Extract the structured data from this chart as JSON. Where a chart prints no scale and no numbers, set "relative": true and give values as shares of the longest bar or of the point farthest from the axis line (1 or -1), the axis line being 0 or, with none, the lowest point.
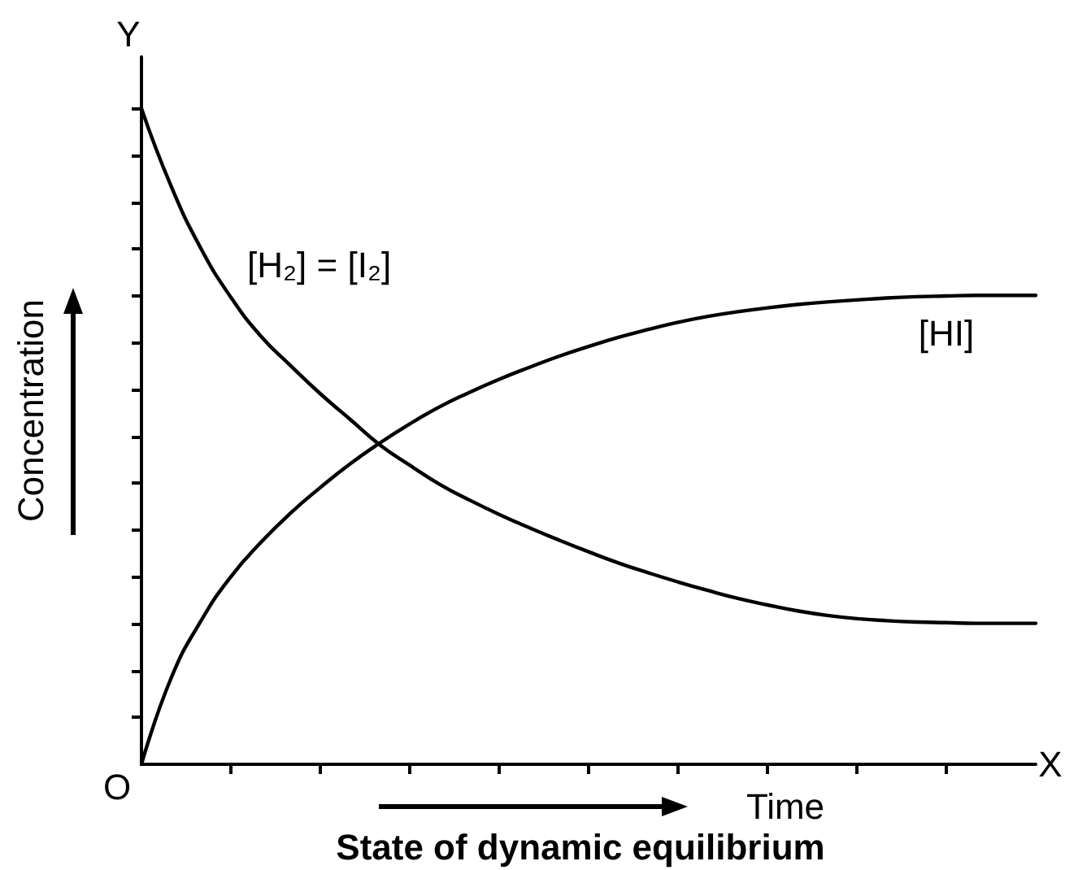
{
  "chart_data": {
    "type": "line",
    "title": "State of dynamic equilibrium",
    "xlabel": "Time",
    "ylabel": "Concentration",
    "annotations": [
      "Y",
      "X",
      "O"
    ],
    "categories": [
      null,
      null,
      null,
      null,
      null,
      null,
      null,
      null,
      null,
      null,
      null,
      null,
      null,
      null,
      null,
      null,
      null,
      null,
      null,
      null,
      null,
      null,
      null,
      null,
      null,
      null,
      null,
      null,
      null,
      null,
      null
    ],
    "series": [
      {
        "name": "[H₂] = [I₂]",
        "color": "#000000",
        "values": [
          1,
          0.881,
          0.786,
          0.712,
          0.653,
          0.608,
          0.565,
          0.526,
          0.487,
          0.456,
          0.427,
          0.403,
          0.381,
          0.361,
          0.342,
          0.324,
          0.307,
          0.292,
          0.278,
          0.265,
          0.253,
          0.243,
          0.234,
          0.227,
          0.222,
          0.219,
          0.217,
          0.216,
          0.215,
          0.215,
          0.215
        ]
      },
      {
        "name": "[HI]",
        "color": "#000000",
        "values": [
          0,
          0.132,
          0.219,
          0.286,
          0.338,
          0.383,
          0.422,
          0.458,
          0.49,
          0.519,
          0.545,
          0.567,
          0.587,
          0.605,
          0.622,
          0.637,
          0.651,
          0.663,
          0.674,
          0.683,
          0.69,
          0.696,
          0.701,
          0.705,
          0.708,
          0.711,
          0.713,
          0.714,
          0.715,
          0.715,
          0.715
        ]
      }
    ],
    "relative": true,
    "tick_labels": false,
    "marker": "none",
    "line_style": "solid"
  }
}
